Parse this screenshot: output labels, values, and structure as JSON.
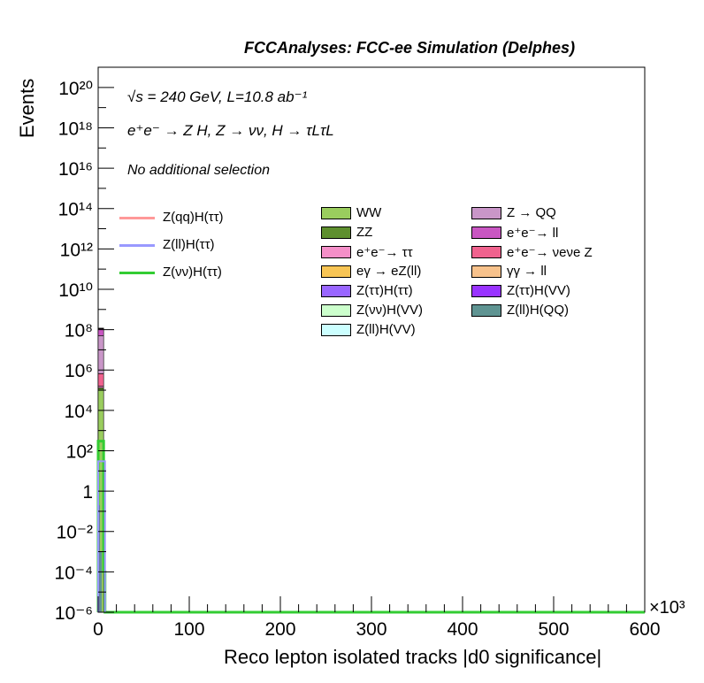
{
  "header": "FCCAnalyses: FCC-ee Simulation (Delphes)",
  "info_lines": [
    "√s = 240 GeV, L=10.8 ab⁻¹",
    "e⁺e⁻ → Z H, Z → νν, H → τLτL",
    "No additional selection"
  ],
  "chart_data": {
    "type": "bar",
    "xlabel": "Reco lepton isolated tracks |d0 significance|",
    "x_multiplier_label": "×10³",
    "ylabel": "Events",
    "yscale": "log",
    "xlim": [
      0,
      600
    ],
    "ylim": [
      1e-06,
      1e+21
    ],
    "x_ticks": [
      0,
      100,
      200,
      300,
      400,
      500,
      600
    ],
    "y_tick_labels": [
      "10⁻⁶",
      "10⁻⁴",
      "10⁻²",
      "1",
      "10²",
      "10⁴",
      "10⁶",
      "10⁸",
      "10¹⁰",
      "10¹²",
      "10¹⁴",
      "10¹⁶",
      "10¹⁸",
      "10²⁰"
    ],
    "y_tick_exponents": [
      -6,
      -4,
      -2,
      0,
      2,
      4,
      6,
      8,
      10,
      12,
      14,
      16,
      18,
      20
    ],
    "first_bin_x": [
      0,
      6
    ],
    "stack_first_bin": [
      {
        "name": "WW",
        "color": "#9ACD5E",
        "value": 100000.0
      },
      {
        "name": "ZZ",
        "color": "#5E8F2E",
        "value": 30000.0
      },
      {
        "name": "e⁺e⁻→ ττ",
        "color": "#F48FC8",
        "value": 30000.0
      },
      {
        "name": "e⁺e⁻→ νeνe Z",
        "color": "#F0628E",
        "value": 500000.0
      },
      {
        "name": "Z → QQ",
        "color": "#C996C8",
        "value": 50000000.0
      },
      {
        "name": "e⁺e⁻→ ll",
        "color": "#C956C2",
        "value": 60000000.0
      },
      {
        "name": "eγ → eZ(ll)",
        "color": "#F8C555",
        "value": 5000000.0
      },
      {
        "name": "γγ → ll",
        "color": "#F7C28C",
        "value": 3000000.0
      }
    ],
    "stack_legend": [
      {
        "name": "WW",
        "color": "#9ACD5E"
      },
      {
        "name": "Z → QQ",
        "color": "#C996C8"
      },
      {
        "name": "ZZ",
        "color": "#5E8F2E"
      },
      {
        "name": "e⁺e⁻→ ll",
        "color": "#C956C2"
      },
      {
        "name": "e⁺e⁻→ ττ",
        "color": "#F48FC8"
      },
      {
        "name": "e⁺e⁻→ νeνe Z",
        "color": "#F0628E"
      },
      {
        "name": "eγ → eZ(ll)",
        "color": "#F8C555"
      },
      {
        "name": "γγ → ll",
        "color": "#F7C28C"
      },
      {
        "name": "Z(ττ)H(ττ)",
        "color": "#9966FF"
      },
      {
        "name": "Z(ττ)H(VV)",
        "color": "#9933FF"
      },
      {
        "name": "Z(νν)H(VV)",
        "color": "#CCFFCC"
      },
      {
        "name": "Z(ll)H(QQ)",
        "color": "#5F9492"
      },
      {
        "name": "Z(ll)H(VV)",
        "color": "#CCFFFF"
      }
    ],
    "signal_series": [
      {
        "name": "Z(qq)H(ττ)",
        "color": "#FF9999"
      },
      {
        "name": "Z(ll)H(ττ)",
        "color": "#9999FF"
      },
      {
        "name": "Z(νν)H(ττ)",
        "color": "#33CC33"
      }
    ],
    "signal_profile": {
      "name": "Z(νν)H(ττ)",
      "x": [
        0,
        1.5,
        3,
        4.5,
        6,
        7.5,
        9,
        600
      ],
      "values": [
        300,
        300,
        300,
        300,
        0.0001,
        1e-06,
        1e-06,
        1e-06
      ]
    }
  }
}
